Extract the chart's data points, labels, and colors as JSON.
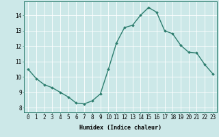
{
  "x": [
    0,
    1,
    2,
    3,
    4,
    5,
    6,
    7,
    8,
    9,
    10,
    11,
    12,
    13,
    14,
    15,
    16,
    17,
    18,
    19,
    20,
    21,
    22,
    23
  ],
  "y": [
    10.5,
    9.9,
    9.5,
    9.3,
    9.0,
    8.7,
    8.3,
    8.25,
    8.45,
    8.9,
    10.5,
    12.2,
    13.2,
    13.35,
    14.0,
    14.5,
    14.2,
    13.0,
    12.8,
    12.05,
    11.6,
    11.55,
    10.8,
    10.2
  ],
  "line_color": "#2d7d6e",
  "marker": "D",
  "marker_size": 1.8,
  "bg_color": "#cce8e8",
  "grid_color": "#ffffff",
  "xlabel": "Humidex (Indice chaleur)",
  "xlabel_fontsize": 6,
  "ylabel_ticks": [
    8,
    9,
    10,
    11,
    12,
    13,
    14
  ],
  "xlim": [
    -0.5,
    23.5
  ],
  "ylim": [
    7.7,
    14.9
  ],
  "xticks": [
    0,
    1,
    2,
    3,
    4,
    5,
    6,
    7,
    8,
    9,
    10,
    11,
    12,
    13,
    14,
    15,
    16,
    17,
    18,
    19,
    20,
    21,
    22,
    23
  ],
  "tick_fontsize": 5.5,
  "line_width": 1.0
}
